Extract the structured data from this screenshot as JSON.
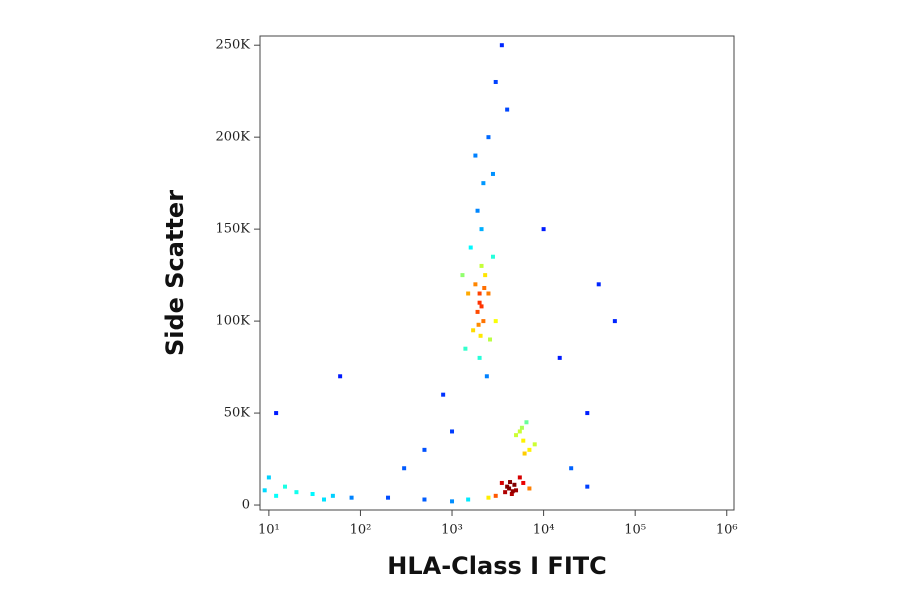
{
  "chart_data": {
    "type": "scatter",
    "x_label": "HLA-Class I FITC",
    "y_label": "Side Scatter",
    "xscale": "log",
    "xlim": [
      8,
      1200000
    ],
    "ylim": [
      -2700,
      255000
    ],
    "xticks": [
      {
        "value": 10,
        "label": "10¹"
      },
      {
        "value": 100,
        "label": "10²"
      },
      {
        "value": 1000,
        "label": "10³"
      },
      {
        "value": 10000,
        "label": "10⁴"
      },
      {
        "value": 100000,
        "label": "10⁵"
      },
      {
        "value": 1000000,
        "label": "10⁶"
      }
    ],
    "yticks": [
      0,
      {
        "value": 50000,
        "label": "50K"
      },
      {
        "value": 100000,
        "label": "100K"
      },
      {
        "value": 150000,
        "label": "150K"
      },
      {
        "value": 200000,
        "label": "200K"
      },
      {
        "value": 250000,
        "label": "250K"
      }
    ],
    "x": [
      2000,
      1800,
      2200,
      2100,
      1700,
      2500,
      1900,
      2300,
      1600,
      2600,
      2000,
      1500,
      2800,
      2100,
      1900,
      2400,
      1400,
      3000,
      2200,
      1300,
      2000,
      2100,
      1950,
      2250,
      2050,
      2500,
      3000,
      1800,
      4000,
      3500,
      2800,
      4000,
      5000,
      3500,
      4500,
      6000,
      3000,
      5500,
      4200,
      4800,
      3800,
      2500,
      7000,
      4300,
      4600,
      1500,
      1000,
      6000,
      5500,
      7000,
      6500,
      5000,
      8000,
      6200,
      5800,
      9,
      12,
      15,
      20,
      30,
      50,
      10,
      40,
      80,
      200,
      500,
      800,
      1000,
      500,
      300,
      15000,
      30000,
      10000,
      60000,
      20000,
      30000,
      60,
      12,
      40000
    ],
    "y": [
      110000,
      120000,
      100000,
      130000,
      95000,
      115000,
      105000,
      125000,
      140000,
      90000,
      80000,
      115000,
      135000,
      150000,
      160000,
      70000,
      85000,
      100000,
      175000,
      125000,
      115000,
      108000,
      98000,
      118000,
      92000,
      200000,
      230000,
      190000,
      215000,
      250000,
      180000,
      10000,
      8000,
      12000,
      6000,
      12000,
      5000,
      15000,
      9000,
      11000,
      7000,
      4000,
      9000,
      12500,
      7500,
      3000,
      2000,
      35000,
      40000,
      30000,
      45000,
      38000,
      33000,
      28000,
      42000,
      8000,
      5000,
      10000,
      7000,
      6000,
      5000,
      15000,
      3000,
      4000,
      4000,
      3000,
      60000,
      40000,
      30000,
      20000,
      80000,
      50000,
      150000,
      100000,
      20000,
      10000,
      70000,
      50000,
      120000
    ]
  }
}
